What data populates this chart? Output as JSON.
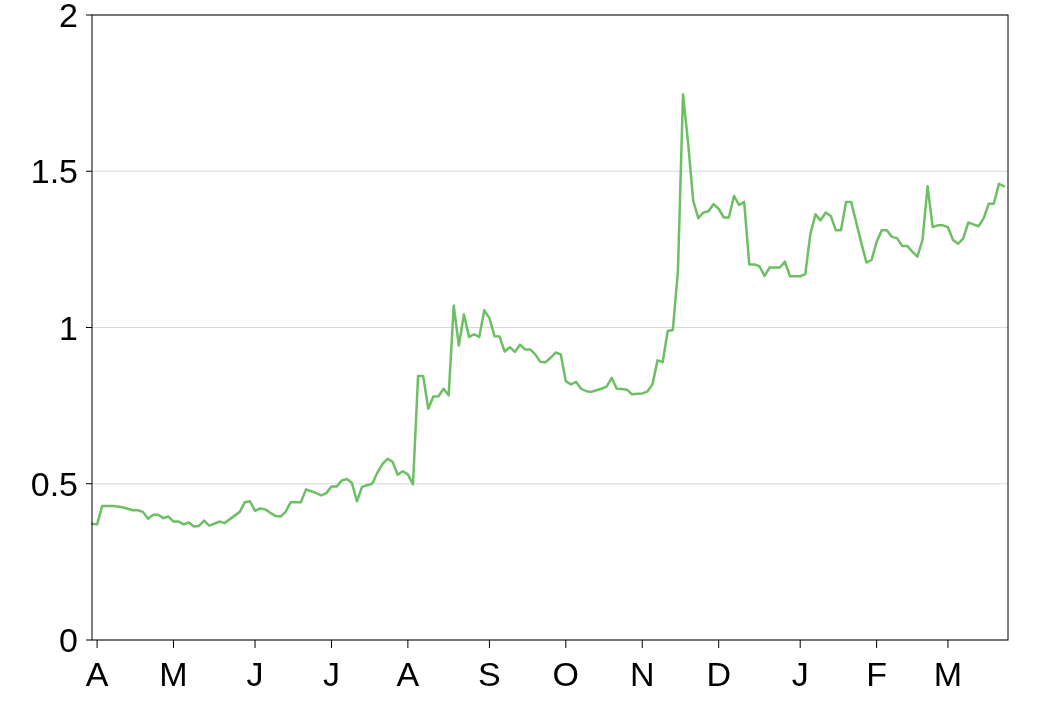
{
  "chart_data": {
    "type": "line",
    "color": "#6cbf62",
    "grid": "y",
    "ylim": [
      0,
      2
    ],
    "yticks": [
      0,
      0.5,
      1,
      1.5,
      2
    ],
    "categories": [
      null,
      "A",
      null,
      null,
      null,
      null,
      null,
      null,
      null,
      null,
      null,
      null,
      null,
      null,
      null,
      null,
      "M",
      null,
      null,
      null,
      null,
      null,
      null,
      null,
      null,
      null,
      null,
      null,
      null,
      null,
      null,
      null,
      "J",
      null,
      null,
      null,
      null,
      null,
      null,
      null,
      null,
      null,
      null,
      null,
      null,
      null,
      null,
      "J",
      null,
      null,
      null,
      null,
      null,
      null,
      null,
      null,
      null,
      null,
      null,
      null,
      null,
      null,
      "A",
      null,
      null,
      null,
      null,
      null,
      null,
      null,
      null,
      null,
      null,
      null,
      null,
      null,
      null,
      null,
      "S",
      null,
      null,
      null,
      null,
      null,
      null,
      null,
      null,
      null,
      null,
      null,
      null,
      null,
      null,
      "O",
      null,
      null,
      null,
      null,
      null,
      null,
      null,
      null,
      null,
      null,
      null,
      null,
      null,
      null,
      "N",
      null,
      null,
      null,
      null,
      null,
      null,
      null,
      null,
      null,
      null,
      null,
      null,
      null,
      null,
      "D",
      null,
      null,
      null,
      null,
      null,
      null,
      null,
      null,
      null,
      null,
      null,
      null,
      null,
      null,
      null,
      "J",
      null,
      null,
      null,
      null,
      null,
      null,
      null,
      null,
      null,
      null,
      null,
      null,
      null,
      null,
      "F",
      null,
      null,
      null,
      null,
      null,
      null,
      null,
      null,
      null,
      null,
      null,
      null,
      null,
      "M",
      null,
      null,
      null,
      null,
      null,
      null,
      null,
      null,
      null,
      null,
      null
    ],
    "values": [
      0.372,
      0.37,
      0.429,
      0.429,
      0.429,
      0.427,
      0.425,
      0.42,
      0.415,
      0.415,
      0.41,
      0.388,
      0.401,
      0.401,
      0.39,
      0.395,
      0.379,
      0.379,
      0.37,
      0.376,
      0.363,
      0.365,
      0.382,
      0.366,
      0.372,
      0.379,
      0.374,
      0.386,
      0.398,
      0.41,
      0.441,
      0.444,
      0.413,
      0.421,
      0.418,
      0.407,
      0.397,
      0.395,
      0.41,
      0.441,
      0.441,
      0.441,
      0.482,
      0.476,
      0.47,
      0.463,
      0.47,
      0.491,
      0.491,
      0.51,
      0.515,
      0.503,
      0.444,
      0.49,
      0.495,
      0.5,
      0.535,
      0.563,
      0.58,
      0.57,
      0.529,
      0.54,
      0.53,
      0.498,
      0.845,
      0.845,
      0.74,
      0.779,
      0.78,
      0.804,
      0.783,
      1.07,
      0.942,
      1.042,
      0.97,
      0.978,
      0.97,
      1.055,
      1.03,
      0.972,
      0.971,
      0.923,
      0.937,
      0.922,
      0.945,
      0.93,
      0.93,
      0.914,
      0.89,
      0.889,
      0.903,
      0.92,
      0.914,
      0.828,
      0.818,
      0.826,
      0.804,
      0.796,
      0.794,
      0.799,
      0.804,
      0.811,
      0.839,
      0.804,
      0.803,
      0.801,
      0.786,
      0.788,
      0.789,
      0.795,
      0.818,
      0.895,
      0.889,
      0.989,
      0.992,
      1.18,
      1.746,
      1.59,
      1.405,
      1.35,
      1.368,
      1.372,
      1.395,
      1.38,
      1.352,
      1.352,
      1.421,
      1.392,
      1.402,
      1.202,
      1.202,
      1.196,
      1.165,
      1.192,
      1.192,
      1.192,
      1.211,
      1.164,
      1.164,
      1.164,
      1.171,
      1.3,
      1.362,
      1.343,
      1.368,
      1.357,
      1.311,
      1.311,
      1.402,
      1.402,
      1.336,
      1.27,
      1.208,
      1.216,
      1.274,
      1.311,
      1.311,
      1.29,
      1.286,
      1.261,
      1.261,
      1.243,
      1.227,
      1.28,
      1.452,
      1.321,
      1.327,
      1.327,
      1.321,
      1.28,
      1.268,
      1.285,
      1.336,
      1.33,
      1.324,
      1.349,
      1.396,
      1.396,
      1.46,
      1.452
    ]
  }
}
